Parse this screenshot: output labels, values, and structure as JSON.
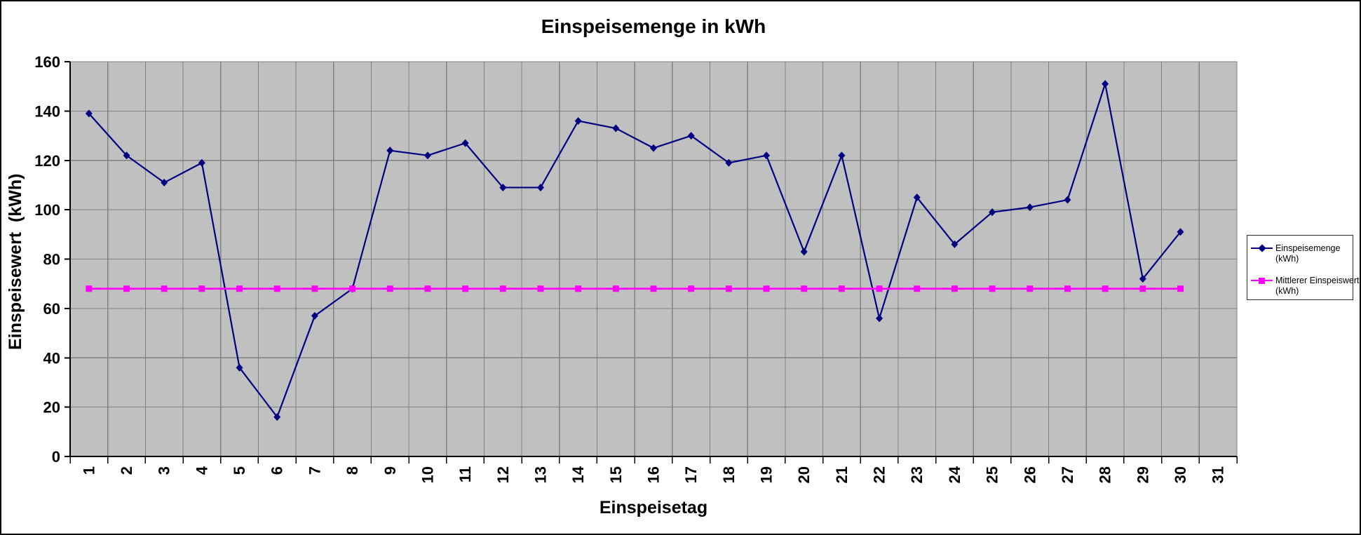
{
  "window": {
    "background": "#ffffff",
    "border_color": "#000000"
  },
  "chart_data": {
    "type": "line",
    "title": "Einspeisemenge in kWh",
    "xlabel": "Einspeisetag",
    "ylabel": "Einspeisewert  (kWh)",
    "categories": [
      1,
      2,
      3,
      4,
      5,
      6,
      7,
      8,
      9,
      10,
      11,
      12,
      13,
      14,
      15,
      16,
      17,
      18,
      19,
      20,
      21,
      22,
      23,
      24,
      25,
      26,
      27,
      28,
      29,
      30,
      31
    ],
    "series": [
      {
        "name": "Einspeisemenge",
        "unit": "(kWh)",
        "color": "#000080",
        "marker": "diamond",
        "line_width": 2.2,
        "values": [
          139,
          122,
          111,
          119,
          36,
          16,
          57,
          68,
          124,
          122,
          127,
          109,
          109,
          136,
          133,
          125,
          130,
          119,
          122,
          83,
          122,
          56,
          105,
          86,
          99,
          101,
          104,
          151,
          72,
          91,
          null
        ]
      },
      {
        "name": "Mittlerer Einspeiswert",
        "unit": "(kWh)",
        "color": "#FF00FF",
        "marker": "square",
        "line_width": 2.8,
        "values": [
          68,
          68,
          68,
          68,
          68,
          68,
          68,
          68,
          68,
          68,
          68,
          68,
          68,
          68,
          68,
          68,
          68,
          68,
          68,
          68,
          68,
          68,
          68,
          68,
          68,
          68,
          68,
          68,
          68,
          68,
          null
        ]
      }
    ],
    "ylim": [
      0,
      160
    ],
    "ytick_step": 20,
    "grid": true,
    "legend_position": "right",
    "plot_bg": "#C0C0C0",
    "grid_color": "#808080",
    "axis_color": "#000000",
    "tick_label_color": "#000000"
  }
}
